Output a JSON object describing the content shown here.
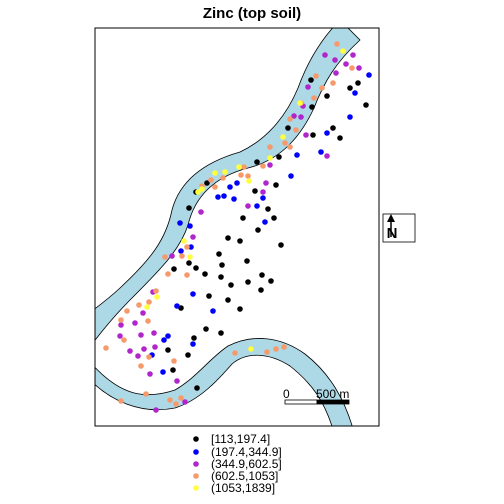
{
  "title": "Zinc (top soil)",
  "colors": {
    "background": "#ffffff",
    "river_fill": "#add8e6",
    "frame": "#000000"
  },
  "legend": {
    "classes": [
      {
        "label": "[113,197.4]",
        "color": "#000000"
      },
      {
        "label": "(197.4,344.9]",
        "color": "#0000ff"
      },
      {
        "label": "(344.9,602.5]",
        "color": "#b026cc"
      },
      {
        "label": "(602.5,1053]",
        "color": "#f79a6b"
      },
      {
        "label": "(1053,1839]",
        "color": "#ffff40"
      }
    ]
  },
  "scale_bar": {
    "label_start": "0",
    "label_end": "500 m"
  },
  "north_arrow": {
    "label": "N",
    "icon": "north-arrow-icon"
  },
  "points": {
    "black": [
      [
        350,
        88
      ],
      [
        358,
        83
      ],
      [
        366,
        105
      ],
      [
        327,
        96
      ],
      [
        311,
        80
      ],
      [
        312,
        107
      ],
      [
        333,
        128
      ],
      [
        340,
        138
      ],
      [
        313,
        135
      ],
      [
        288,
        128
      ],
      [
        279,
        157
      ],
      [
        257,
        162
      ],
      [
        276,
        185
      ],
      [
        268,
        209
      ],
      [
        281,
        245
      ],
      [
        274,
        218
      ],
      [
        255,
        191
      ],
      [
        243,
        218
      ],
      [
        258,
        230
      ],
      [
        240,
        241
      ],
      [
        228,
        238
      ],
      [
        247,
        261
      ],
      [
        222,
        265
      ],
      [
        219,
        254
      ],
      [
        205,
        274
      ],
      [
        196,
        268
      ],
      [
        189,
        263
      ],
      [
        174,
        269
      ],
      [
        181,
        308
      ],
      [
        209,
        296
      ],
      [
        228,
        300
      ],
      [
        248,
        282
      ],
      [
        261,
        290
      ],
      [
        271,
        281
      ],
      [
        262,
        275
      ],
      [
        240,
        309
      ],
      [
        221,
        333
      ],
      [
        206,
        329
      ],
      [
        194,
        338
      ],
      [
        188,
        355
      ],
      [
        168,
        350
      ],
      [
        173,
        370
      ],
      [
        197,
        388
      ],
      [
        221,
        277
      ],
      [
        231,
        285
      ],
      [
        207,
        183
      ],
      [
        196,
        192
      ],
      [
        189,
        208
      ]
    ],
    "blue": [
      [
        369,
        75
      ],
      [
        355,
        93
      ],
      [
        350,
        117
      ],
      [
        327,
        133
      ],
      [
        321,
        152
      ],
      [
        297,
        155
      ],
      [
        291,
        176
      ],
      [
        263,
        198
      ],
      [
        257,
        206
      ],
      [
        265,
        222
      ],
      [
        234,
        199
      ],
      [
        237,
        183
      ],
      [
        218,
        197
      ],
      [
        230,
        187
      ],
      [
        191,
        247
      ],
      [
        224,
        196
      ],
      [
        190,
        226
      ],
      [
        180,
        223
      ],
      [
        181,
        251
      ],
      [
        193,
        294
      ],
      [
        177,
        306
      ],
      [
        164,
        340
      ],
      [
        213,
        311
      ],
      [
        168,
        336
      ],
      [
        152,
        355
      ],
      [
        163,
        372
      ],
      [
        193,
        344
      ]
    ],
    "purple": [
      [
        359,
        68
      ],
      [
        346,
        64
      ],
      [
        353,
        55
      ],
      [
        335,
        60
      ],
      [
        325,
        55
      ],
      [
        336,
        73
      ],
      [
        308,
        87
      ],
      [
        303,
        106
      ],
      [
        301,
        117
      ],
      [
        294,
        116
      ],
      [
        306,
        135
      ],
      [
        327,
        156
      ],
      [
        270,
        165
      ],
      [
        266,
        183
      ],
      [
        263,
        192
      ],
      [
        248,
        206
      ],
      [
        193,
        237
      ],
      [
        201,
        212
      ],
      [
        172,
        256
      ],
      [
        153,
        292
      ],
      [
        143,
        313
      ],
      [
        135,
        323
      ],
      [
        141,
        335
      ],
      [
        144,
        349
      ],
      [
        154,
        333
      ],
      [
        155,
        347
      ],
      [
        138,
        356
      ],
      [
        150,
        374
      ],
      [
        156,
        410
      ],
      [
        177,
        381
      ],
      [
        185,
        402
      ],
      [
        130,
        351
      ],
      [
        120,
        336
      ],
      [
        121,
        325
      ]
    ],
    "orange": [
      [
        337,
        44
      ],
      [
        352,
        68
      ],
      [
        333,
        83
      ],
      [
        322,
        88
      ],
      [
        316,
        76
      ],
      [
        314,
        98
      ],
      [
        301,
        103
      ],
      [
        296,
        130
      ],
      [
        285,
        143
      ],
      [
        290,
        147
      ],
      [
        270,
        147
      ],
      [
        263,
        166
      ],
      [
        244,
        167
      ],
      [
        248,
        176
      ],
      [
        241,
        175
      ],
      [
        223,
        178
      ],
      [
        215,
        187
      ],
      [
        211,
        180
      ],
      [
        202,
        186
      ],
      [
        187,
        247
      ],
      [
        182,
        256
      ],
      [
        165,
        257
      ],
      [
        168,
        274
      ],
      [
        187,
        275
      ],
      [
        156,
        291
      ],
      [
        149,
        302
      ],
      [
        139,
        305
      ],
      [
        148,
        321
      ],
      [
        127,
        311
      ],
      [
        121,
        320
      ],
      [
        124,
        340
      ],
      [
        106,
        348
      ],
      [
        141,
        366
      ],
      [
        174,
        361
      ],
      [
        121,
        401
      ],
      [
        146,
        394
      ],
      [
        170,
        400
      ],
      [
        176,
        404
      ],
      [
        181,
        398
      ],
      [
        235,
        353
      ],
      [
        251,
        349
      ],
      [
        267,
        352
      ],
      [
        276,
        349
      ],
      [
        284,
        347
      ],
      [
        149,
        357
      ],
      [
        290,
        119
      ]
    ],
    "yellow": [
      [
        343,
        51
      ],
      [
        300,
        103
      ],
      [
        283,
        137
      ],
      [
        270,
        158
      ],
      [
        249,
        181
      ],
      [
        239,
        167
      ],
      [
        225,
        172
      ],
      [
        215,
        173
      ],
      [
        202,
        189
      ],
      [
        198,
        192
      ],
      [
        184,
        241
      ],
      [
        190,
        257
      ],
      [
        157,
        297
      ],
      [
        147,
        307
      ],
      [
        251,
        349
      ]
    ]
  }
}
